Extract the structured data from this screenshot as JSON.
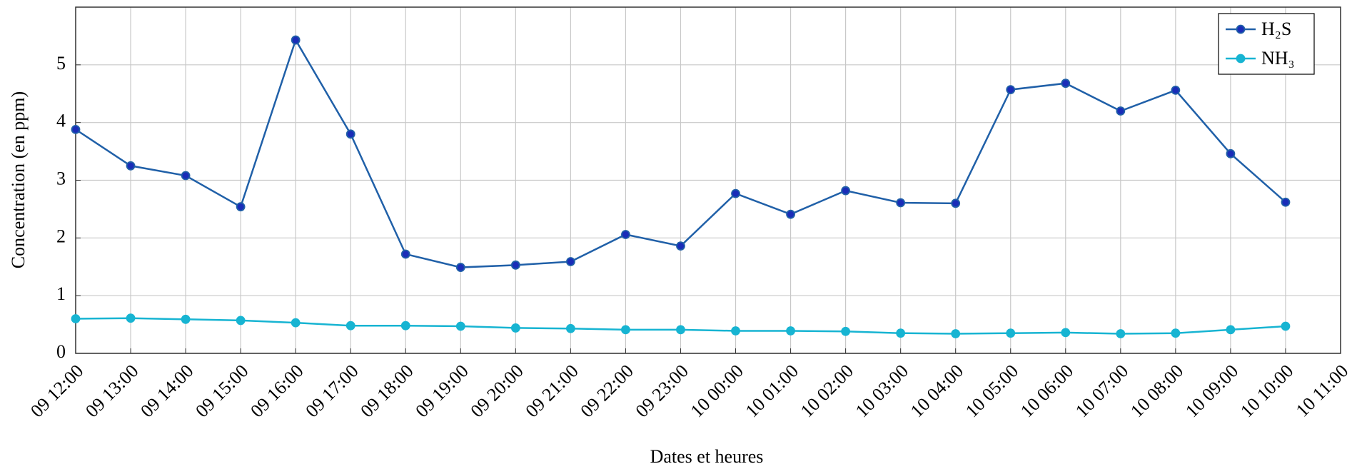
{
  "chart_data": {
    "type": "line",
    "x_label": "Dates et heures",
    "y_label": "Concentration (en ppm)",
    "categories": [
      "09 12:00",
      "09 13:00",
      "09 14:00",
      "09 15:00",
      "09 16:00",
      "09 17:00",
      "09 18:00",
      "09 19:00",
      "09 20:00",
      "09 21:00",
      "09 22:00",
      "09 23:00",
      "10 00:00",
      "10 01:00",
      "10 02:00",
      "10 03:00",
      "10 04:00",
      "10 05:00",
      "10 06:00",
      "10 07:00",
      "10 08:00",
      "10 09:00",
      "10 10:00",
      "10 11:00"
    ],
    "series": [
      {
        "name": "H₂S",
        "color": "#2060a8",
        "marker_color": "#1a2db8",
        "values": [
          3.88,
          3.25,
          3.08,
          2.54,
          5.43,
          3.8,
          1.72,
          1.49,
          1.53,
          1.59,
          2.06,
          1.86,
          2.77,
          2.41,
          2.82,
          2.61,
          2.6,
          4.57,
          4.68,
          4.2,
          4.56,
          3.46,
          2.62,
          null
        ]
      },
      {
        "name": "NH₃",
        "color": "#17b4d2",
        "marker_color": "#17b4d2",
        "values": [
          0.6,
          0.61,
          0.59,
          0.57,
          0.53,
          0.48,
          0.48,
          0.47,
          0.44,
          0.43,
          0.41,
          0.41,
          0.39,
          0.39,
          0.38,
          0.35,
          0.34,
          0.35,
          0.36,
          0.34,
          0.35,
          0.41,
          0.47,
          null
        ]
      }
    ],
    "ylim": [
      0,
      6
    ],
    "yticks": [
      0,
      1,
      2,
      3,
      4,
      5
    ],
    "grid": true,
    "legend": "upper right"
  }
}
